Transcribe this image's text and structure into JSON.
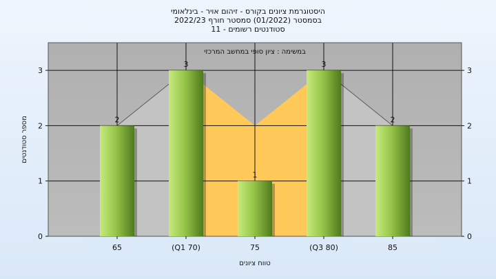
{
  "title_lines": [
    "היסטוגרמת ציונים בקורס - זיהום אויר - בינלאומי",
    "בסמסטר  (01/2022)  סמסטר חורף  2022/23",
    "סטודנטים רשומים - 11"
  ],
  "chart_data": {
    "type": "bar",
    "subtitle": "במשימה : ציון סופי במחשב המרכזי",
    "categories": [
      "65",
      "(Q1 70)",
      "75",
      "(Q3 80)",
      "85"
    ],
    "values": [
      2,
      3,
      1,
      3,
      2
    ],
    "data_labels": [
      "2",
      "3",
      "1",
      "3",
      "2"
    ],
    "xlabel": "טווח ציונים",
    "ylabel": "מספר סטודנטים",
    "ylim": [
      0,
      3.5
    ],
    "yticks": [
      0,
      1,
      2,
      3
    ],
    "grid": true,
    "iqr_band_color": "#ffc95a",
    "background_area_color": "#c3c3c3",
    "bar_color_light": "#c6ea7d",
    "bar_color_dark": "#4f7a1c",
    "plot_background": "#b4b4b4"
  }
}
